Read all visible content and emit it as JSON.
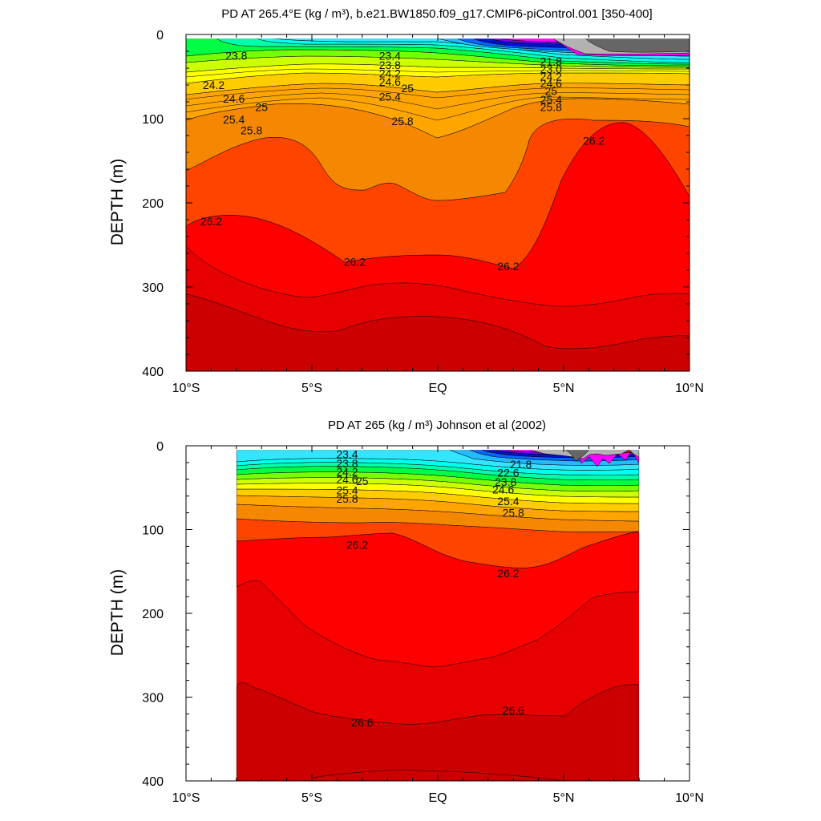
{
  "chart_data": [
    {
      "type": "contour",
      "title": "PD AT 265.4°E (kg / m³), b.e21.BW1850.f09_g17.CMIP6-piControl.001 [350-400]",
      "ylabel": "DEPTH (m)",
      "xlabel": "",
      "xlim": [
        -10,
        10
      ],
      "ylim": [
        400,
        0
      ],
      "x_ticks": [
        {
          "value": -10,
          "label": "10°S"
        },
        {
          "value": -5,
          "label": "5°S"
        },
        {
          "value": 0,
          "label": "EQ"
        },
        {
          "value": 5,
          "label": "5°N"
        },
        {
          "value": 10,
          "label": "10°N"
        }
      ],
      "y_ticks": [
        0,
        100,
        200,
        300,
        400
      ],
      "data_x_range": [
        -10,
        10
      ],
      "data_depth_range": [
        5,
        400
      ],
      "contour_labels": [
        {
          "text": "23.8",
          "x": -8.0,
          "depth": 25
        },
        {
          "text": "23.4",
          "x": -1.9,
          "depth": 25
        },
        {
          "text": "23.8",
          "x": -1.9,
          "depth": 36
        },
        {
          "text": "24.2",
          "x": -1.9,
          "depth": 46
        },
        {
          "text": "24.6",
          "x": -1.9,
          "depth": 56
        },
        {
          "text": "25",
          "x": -1.2,
          "depth": 64
        },
        {
          "text": "24.2",
          "x": -8.9,
          "depth": 60
        },
        {
          "text": "24.6",
          "x": -8.1,
          "depth": 76
        },
        {
          "text": "25",
          "x": -7.0,
          "depth": 86
        },
        {
          "text": "25.4",
          "x": -1.9,
          "depth": 74
        },
        {
          "text": "25.4",
          "x": -8.1,
          "depth": 101
        },
        {
          "text": "25.8",
          "x": -7.4,
          "depth": 114
        },
        {
          "text": "25.8",
          "x": -1.4,
          "depth": 103
        },
        {
          "text": "21.8",
          "x": 4.5,
          "depth": 32
        },
        {
          "text": "23.0",
          "x": 4.5,
          "depth": 41
        },
        {
          "text": "24.2",
          "x": 4.5,
          "depth": 50
        },
        {
          "text": "24.6",
          "x": 4.5,
          "depth": 58
        },
        {
          "text": "25",
          "x": 4.5,
          "depth": 67
        },
        {
          "text": "25.4",
          "x": 4.5,
          "depth": 77
        },
        {
          "text": "25.8",
          "x": 4.5,
          "depth": 86
        },
        {
          "text": "26.2",
          "x": 6.2,
          "depth": 126
        },
        {
          "text": "26.2",
          "x": -9.0,
          "depth": 222
        },
        {
          "text": "26.2",
          "x": -3.3,
          "depth": 270
        },
        {
          "text": "26.2",
          "x": 2.8,
          "depth": 275
        }
      ]
    },
    {
      "type": "contour",
      "title": "PD AT 265 (kg / m³) Johnson et al (2002)",
      "ylabel": "DEPTH (m)",
      "xlabel": "",
      "xlim": [
        -10,
        10
      ],
      "ylim": [
        400,
        0
      ],
      "x_ticks": [
        {
          "value": -10,
          "label": "10°S"
        },
        {
          "value": -5,
          "label": "5°S"
        },
        {
          "value": 0,
          "label": "EQ"
        },
        {
          "value": 5,
          "label": "5°N"
        },
        {
          "value": 10,
          "label": "10°N"
        }
      ],
      "y_ticks": [
        0,
        100,
        200,
        300,
        400
      ],
      "data_x_range": [
        -8,
        8
      ],
      "data_depth_range": [
        5,
        400
      ],
      "contour_labels": [
        {
          "text": "23.4",
          "x": -3.6,
          "depth": 10
        },
        {
          "text": "23.8",
          "x": -3.6,
          "depth": 21
        },
        {
          "text": "24.2",
          "x": -3.6,
          "depth": 31
        },
        {
          "text": "24.6",
          "x": -3.6,
          "depth": 40
        },
        {
          "text": "25",
          "x": -3.0,
          "depth": 42
        },
        {
          "text": "25.4",
          "x": -3.6,
          "depth": 53
        },
        {
          "text": "25.8",
          "x": -3.6,
          "depth": 63
        },
        {
          "text": "21.8",
          "x": 3.3,
          "depth": 22
        },
        {
          "text": "22.6",
          "x": 2.8,
          "depth": 32
        },
        {
          "text": "23.8",
          "x": 2.7,
          "depth": 43
        },
        {
          "text": "24.6",
          "x": 2.6,
          "depth": 52
        },
        {
          "text": "25.4",
          "x": 2.8,
          "depth": 66
        },
        {
          "text": "25.8",
          "x": 3.0,
          "depth": 80
        },
        {
          "text": "26.2",
          "x": -3.2,
          "depth": 118
        },
        {
          "text": "26.2",
          "x": 2.8,
          "depth": 152
        },
        {
          "text": "26.6",
          "x": -3.0,
          "depth": 330
        },
        {
          "text": "26.6",
          "x": 3.0,
          "depth": 316
        }
      ]
    }
  ],
  "colors": {
    "fill_deepest": "#cc0000",
    "fill_deep": "#e60000",
    "fill_red": "#ff0000",
    "fill_orange_red": "#ff4400",
    "fill_orange": "#f58800",
    "fill_light_orange": "#ffa500",
    "fill_yellow_orange": "#ffcc00",
    "fill_yellow": "#ffff00",
    "fill_yellow_green": "#ccff00",
    "fill_light_green": "#77ff00",
    "fill_green": "#00ff44",
    "fill_mint": "#00ffaa",
    "fill_aqua": "#00ffee",
    "fill_cyan": "#33e6ff",
    "fill_sky": "#22bbff",
    "fill_blue": "#0066ff",
    "fill_dark_blue": "#0011cc",
    "fill_violet": "#7700ee",
    "fill_magenta": "#ff00ff",
    "fill_light_gray": "#b2b2b2",
    "fill_dark_gray": "#666666"
  }
}
